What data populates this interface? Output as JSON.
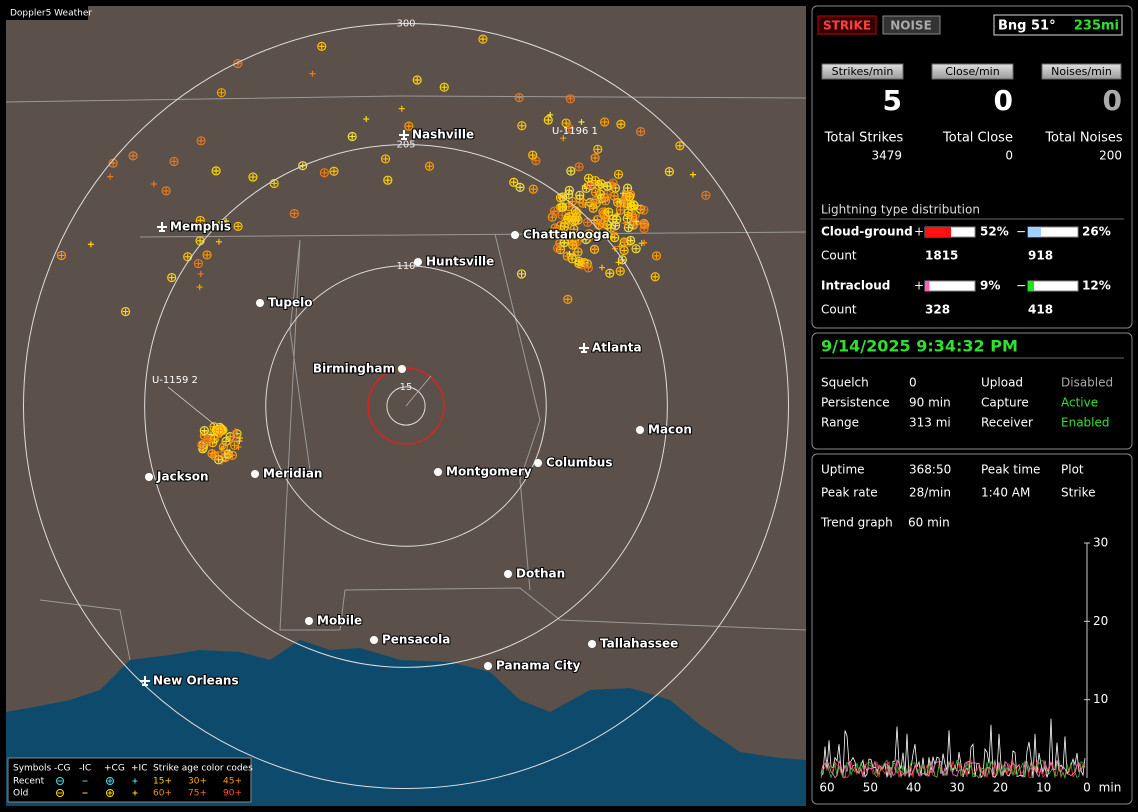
{
  "app_title": "Doppler5 Weather",
  "map": {
    "rings": [
      15,
      110,
      205,
      300
    ],
    "cities": [
      "Nashville",
      "Memphis",
      "Chattanooga",
      "Huntsville",
      "Tupelo",
      "Atlanta",
      "Birmingham",
      "Macon",
      "Jackson",
      "Meridian",
      "Montgomery",
      "Columbus",
      "Dothan",
      "Mobile",
      "Pensacola",
      "Tallahassee",
      "Panama City",
      "New Orleans"
    ],
    "storm_ids": [
      "U-1196 1",
      "U-1159 2"
    ]
  },
  "legend": {
    "headers": [
      "Symbols",
      "-CG",
      "-IC",
      "+CG",
      "+IC"
    ],
    "age_title": "Strike age color codes",
    "rows": [
      {
        "label": "Recent",
        "ages": [
          "15+",
          "30+",
          "45+"
        ]
      },
      {
        "label": "Old",
        "ages": [
          "60+",
          "75+",
          "90+"
        ]
      }
    ]
  },
  "buttons": [
    "STRIKE",
    "NOISE"
  ],
  "bearing": "Bng 51°",
  "distance": "235mi",
  "rates": [
    {
      "label": "Strikes/min",
      "value": 5
    },
    {
      "label": "Close/min",
      "value": 0
    },
    {
      "label": "Noises/min",
      "value": 0
    }
  ],
  "totals": [
    {
      "label": "Total Strikes",
      "value": 3479
    },
    {
      "label": "Total Close",
      "value": 0
    },
    {
      "label": "Total Noises",
      "value": 200
    }
  ],
  "distribution": {
    "title": "Lightning type distribution",
    "plus_sign": "+",
    "minus_sign": "−",
    "count_label": "Count",
    "rows": [
      {
        "label": "Cloud-ground",
        "plus": {
          "value": 52,
          "label": "52%"
        },
        "minus": {
          "value": 26,
          "label": "26%"
        },
        "plus_count": 1815,
        "minus_count": 918
      },
      {
        "label": "Intracloud",
        "plus": {
          "value": 9,
          "label": "9%"
        },
        "minus": {
          "value": 12,
          "label": "12%"
        },
        "plus_count": 328,
        "minus_count": 418
      }
    ]
  },
  "datetime": "9/14/2025 9:34:32 PM",
  "status": [
    [
      "Squelch",
      "0",
      "Upload",
      "Disabled"
    ],
    [
      "Persistence",
      "90 min",
      "Capture",
      "Active"
    ],
    [
      "Range",
      "313 mi",
      "Receiver",
      "Enabled"
    ]
  ],
  "stats": [
    [
      "Uptime",
      "368:50",
      "Peak time",
      "Plot"
    ],
    [
      "Peak rate",
      "28/min",
      "1:40 AM",
      "Strike"
    ]
  ],
  "trend": {
    "label": "Trend graph",
    "span": "60 min",
    "ylim": [
      0,
      30
    ],
    "yticks": [
      10,
      20,
      30
    ],
    "xlim": [
      60,
      0
    ],
    "xticks": [
      60,
      50,
      40,
      30,
      20,
      10,
      0
    ],
    "x_unit": "min"
  }
}
